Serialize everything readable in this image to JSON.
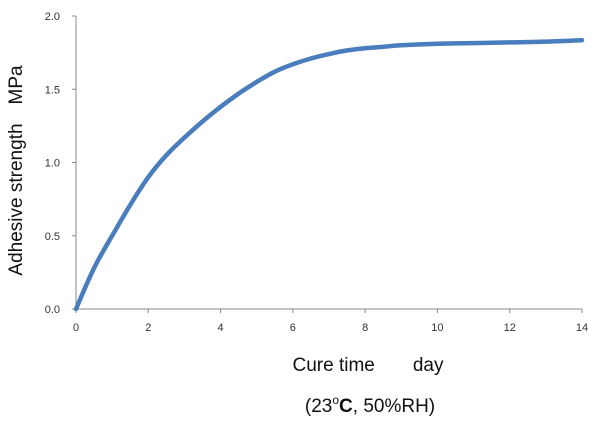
{
  "chart_data": {
    "type": "line",
    "title": "",
    "xlabel": "Cure time　　day",
    "ylabel": "Adhesive strength　MPa",
    "condition": {
      "open": "(23",
      "degree": "o",
      "unit": "C",
      "rest": ", 50%RH)"
    },
    "xlim": [
      0,
      14
    ],
    "ylim": [
      0.0,
      2.0
    ],
    "x_ticks": [
      "0",
      "2",
      "4",
      "6",
      "8",
      "10",
      "12",
      "14"
    ],
    "y_ticks": [
      "0.0",
      "0.5",
      "1.0",
      "1.5",
      "2.0"
    ],
    "grid": false,
    "series": [
      {
        "color": "#4a7dbd",
        "x": [
          0,
          0.5,
          1,
          1.5,
          2,
          2.5,
          3,
          3.5,
          4,
          4.5,
          5,
          5.5,
          6,
          6.5,
          7,
          7.5,
          8,
          8.5,
          9,
          10,
          11,
          12,
          13,
          14
        ],
        "y": [
          0.0,
          0.28,
          0.5,
          0.71,
          0.9,
          1.05,
          1.17,
          1.28,
          1.38,
          1.47,
          1.55,
          1.62,
          1.67,
          1.71,
          1.74,
          1.765,
          1.78,
          1.79,
          1.8,
          1.81,
          1.815,
          1.82,
          1.825,
          1.835
        ]
      }
    ]
  }
}
